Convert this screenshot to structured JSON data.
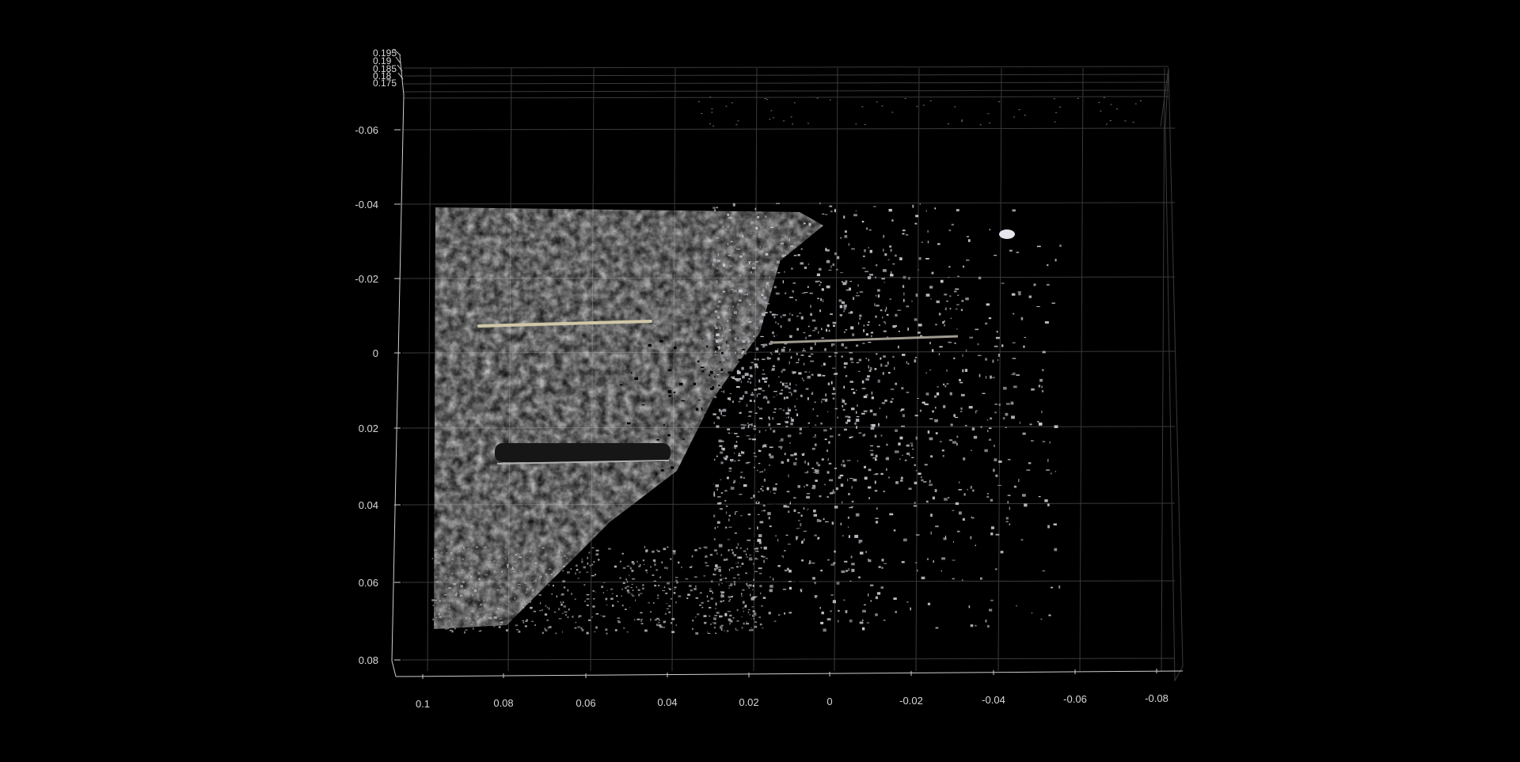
{
  "chart_data": {
    "type": "scatter",
    "title": "",
    "xlabel": "",
    "ylabel": "",
    "zlabel": "",
    "background": "#000000",
    "grid": true,
    "view": "3d-top-down point cloud",
    "x_ticks": [
      "0.1",
      "0.08",
      "0.06",
      "0.04",
      "0.02",
      "0",
      "-0.02",
      "-0.04",
      "-0.06",
      "-0.08"
    ],
    "x_tick_values": [
      0.1,
      0.08,
      0.06,
      0.04,
      0.02,
      0,
      -0.02,
      -0.04,
      -0.06,
      -0.08
    ],
    "y_ticks": [
      "-0.06",
      "-0.04",
      "-0.02",
      "0",
      "0.02",
      "0.04",
      "0.06",
      "0.08"
    ],
    "y_tick_values": [
      -0.06,
      -0.04,
      -0.02,
      0,
      0.02,
      0.04,
      0.06,
      0.08
    ],
    "z_ticks": [
      "0.195",
      "0.19",
      "0.185",
      "0.18",
      "0.175"
    ],
    "z_tick_values": [
      0.195,
      0.19,
      0.185,
      0.18,
      0.175
    ],
    "xlim": [
      0.107,
      -0.085
    ],
    "ylim": [
      -0.08,
      0.083
    ],
    "surface": {
      "description_colors": [
        "#8e8e8e",
        "#a8a8a8",
        "#777777"
      ],
      "dense_region": {
        "x": [
          0.1,
          0.022
        ],
        "y": [
          -0.038,
          0.06
        ]
      },
      "sparse_region": {
        "x": [
          0.1,
          -0.062
        ],
        "y": [
          -0.045,
          0.075
        ]
      },
      "features": [
        {
          "name": "light groove",
          "x": [
            0.088,
            0.047
          ],
          "y": 0.007,
          "color": "#c9c2a8"
        },
        {
          "name": "dark groove",
          "x": [
            0.085,
            0.042
          ],
          "y": 0.026,
          "color": "#1a1a1a"
        },
        {
          "name": "faint groove",
          "x": [
            0.015,
            -0.03
          ],
          "y": 0.003,
          "color": "#a09c90"
        }
      ]
    }
  }
}
